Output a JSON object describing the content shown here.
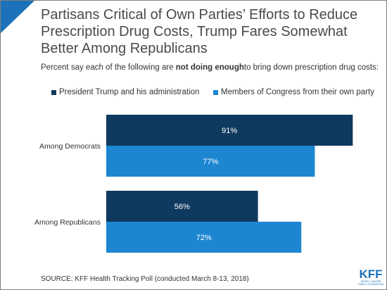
{
  "title": "Partisans Critical of Own Parties’ Efforts to Reduce Prescription Drug Costs, Trump Fares Somewhat Better Among Republicans",
  "subtitle": {
    "before": "Percent say each of the following are ",
    "bold": "not doing enough",
    "after": "to bring down prescription drug costs:"
  },
  "source": "SOURCE: KFF Health Tracking Poll (conducted March 8-13, 2018)",
  "logo": {
    "word": "KFF",
    "line1": "HENRY J KAISER",
    "line2": "FAMILY FOUNDATION"
  },
  "colors": {
    "accent_triangle": "#1b72b9",
    "series_dark": "#0f3a5f",
    "series_light": "#1c86d1"
  },
  "chart_data": {
    "type": "bar",
    "orientation": "horizontal",
    "categories": [
      "Among Democrats",
      "Among Republicans"
    ],
    "series": [
      {
        "name": "President Trump and his administration",
        "values": [
          91,
          56
        ],
        "color": "#0f3a5f",
        "labels": [
          "91%",
          "56%"
        ]
      },
      {
        "name": "Members of Congress from their own party",
        "values": [
          77,
          72
        ],
        "color": "#1c86d1",
        "labels": [
          "77%",
          "72%"
        ]
      }
    ],
    "xlim": [
      0,
      100
    ],
    "legend_position": "top",
    "grid": false,
    "xlabel": "",
    "ylabel": ""
  }
}
